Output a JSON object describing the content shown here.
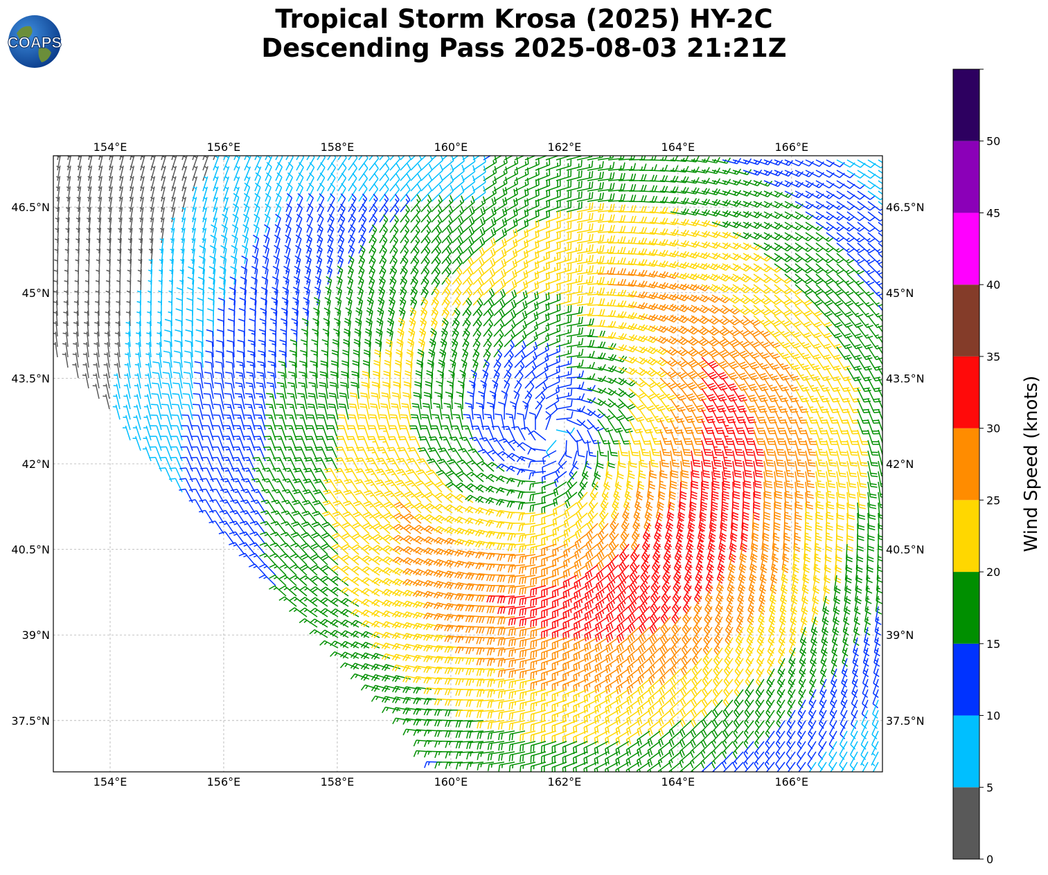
{
  "header": {
    "title_line1": "Tropical Storm Krosa (2025) HY-2C",
    "title_line2": "Descending Pass 2025-08-03 21:21Z",
    "logo_text": "COAPS"
  },
  "map": {
    "lon_range": [
      153.0,
      167.6
    ],
    "lat_range": [
      36.6,
      47.4
    ],
    "lon_ticks": [
      154,
      156,
      158,
      160,
      162,
      164,
      166
    ],
    "lon_tick_labels": [
      "154°E",
      "156°E",
      "158°E",
      "160°E",
      "162°E",
      "164°E",
      "166°E"
    ],
    "lat_ticks": [
      37.5,
      39,
      40.5,
      42,
      43.5,
      45,
      46.5
    ],
    "lat_tick_labels": [
      "37.5°N",
      "39°N",
      "40.5°N",
      "42°N",
      "43.5°N",
      "45°N",
      "46.5°N"
    ],
    "gridlines": true,
    "storm_center_approx": {
      "lon": 161.8,
      "lat": 42.5
    },
    "swath_note_edge": "diagonal southwest edge from about (153.0 E, 43.8 N) to (160.0 E, 36.6 N)"
  },
  "colorbar": {
    "label": "Wind Speed (knots)",
    "tick_labels": [
      "0",
      "5",
      "10",
      "15",
      "20",
      "25",
      "30",
      "35",
      "40",
      "45",
      "50"
    ],
    "tick_values": [
      0,
      5,
      10,
      15,
      20,
      25,
      30,
      35,
      40,
      45,
      50
    ],
    "max_value": 55,
    "bins": [
      {
        "min": 0,
        "max": 5,
        "color": "#595959"
      },
      {
        "min": 5,
        "max": 10,
        "color": "#00bfff"
      },
      {
        "min": 10,
        "max": 15,
        "color": "#0033ff"
      },
      {
        "min": 15,
        "max": 20,
        "color": "#008f00"
      },
      {
        "min": 20,
        "max": 25,
        "color": "#ffd700"
      },
      {
        "min": 25,
        "max": 30,
        "color": "#ff8c00"
      },
      {
        "min": 30,
        "max": 35,
        "color": "#ff0a0a"
      },
      {
        "min": 35,
        "max": 40,
        "color": "#843c29"
      },
      {
        "min": 40,
        "max": 45,
        "color": "#ff00ff"
      },
      {
        "min": 45,
        "max": 50,
        "color": "#8b00b8"
      },
      {
        "min": 50,
        "max": 55,
        "color": "#2d0060"
      }
    ]
  }
}
